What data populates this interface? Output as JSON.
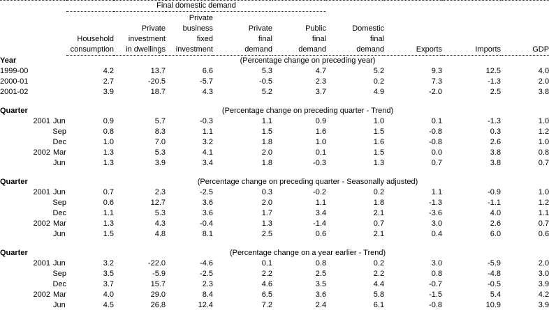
{
  "header": {
    "spanner": "Final domestic demand",
    "columns": [
      {
        "name": "household-consumption",
        "lines": [
          "Household",
          "consumption"
        ]
      },
      {
        "name": "private-investment-in-dwellings",
        "lines": [
          "Private",
          "investment",
          "in dwellings"
        ]
      },
      {
        "name": "private-business-fixed-investment",
        "lines": [
          "Private",
          "business",
          "fixed",
          "investment"
        ]
      },
      {
        "name": "private-final-demand",
        "lines": [
          "Private",
          "final",
          "demand"
        ]
      },
      {
        "name": "public-final-demand",
        "lines": [
          "Public",
          "final",
          "demand"
        ]
      },
      {
        "name": "domestic-final-demand",
        "lines": [
          "Domestic",
          "final",
          "demand"
        ]
      },
      {
        "name": "exports",
        "lines": [
          "Exports"
        ]
      },
      {
        "name": "imports",
        "lines": [
          "Imports"
        ]
      },
      {
        "name": "gdp",
        "lines": [
          "GDP"
        ]
      }
    ]
  },
  "sections": [
    {
      "row_header": "Year",
      "caption": "(Percentage change on preceding year)",
      "rows": [
        {
          "year": "1999-00",
          "month": "",
          "values": [
            "4.2",
            "13.7",
            "6.6",
            "5.3",
            "4.7",
            "5.2",
            "9.3",
            "12.5",
            "4.0"
          ]
        },
        {
          "year": "2000-01",
          "month": "",
          "values": [
            "2.7",
            "-20.5",
            "-5.7",
            "-0.5",
            "2.3",
            "0.2",
            "7.3",
            "-1.3",
            "2.0"
          ]
        },
        {
          "year": "2001-02",
          "month": "",
          "values": [
            "3.9",
            "18.7",
            "4.3",
            "5.2",
            "3.7",
            "4.9",
            "-2.0",
            "2.5",
            "3.8"
          ]
        }
      ]
    },
    {
      "row_header": "Quarter",
      "caption": "(Percentage change on preceding quarter - Trend)",
      "rows": [
        {
          "year": "2001",
          "month": "Jun",
          "values": [
            "0.9",
            "5.7",
            "-0.3",
            "1.1",
            "0.9",
            "1.0",
            "0.1",
            "-1.3",
            "1.0"
          ]
        },
        {
          "year": "",
          "month": "Sep",
          "values": [
            "0.8",
            "8.3",
            "1.1",
            "1.5",
            "1.6",
            "1.5",
            "-0.8",
            "0.3",
            "1.2"
          ]
        },
        {
          "year": "",
          "month": "Dec",
          "values": [
            "1.0",
            "7.0",
            "3.2",
            "1.8",
            "1.0",
            "1.6",
            "-0.8",
            "2.6",
            "1.0"
          ]
        },
        {
          "year": "2002",
          "month": "Mar",
          "values": [
            "1.3",
            "5.3",
            "4.1",
            "2.0",
            "0.1",
            "1.5",
            "0.0",
            "3.8",
            "0.8"
          ]
        },
        {
          "year": "",
          "month": "Jun",
          "values": [
            "1.3",
            "3.9",
            "3.4",
            "1.8",
            "-0.3",
            "1.3",
            "0.7",
            "3.8",
            "0.7"
          ]
        }
      ]
    },
    {
      "row_header": "Quarter",
      "caption": "(Percentage change on preceding quarter - Seasonally adjusted)",
      "rows": [
        {
          "year": "2001",
          "month": "Jun",
          "values": [
            "0.7",
            "2.3",
            "-2.5",
            "0.3",
            "-0.2",
            "0.2",
            "1.1",
            "-0.9",
            "1.0"
          ]
        },
        {
          "year": "",
          "month": "Sep",
          "values": [
            "0.6",
            "12.7",
            "3.6",
            "2.0",
            "1.1",
            "1.8",
            "-1.3",
            "-1.1",
            "1.2"
          ]
        },
        {
          "year": "",
          "month": "Dec",
          "values": [
            "1.1",
            "5.3",
            "3.6",
            "1.7",
            "3.4",
            "2.1",
            "-3.6",
            "4.0",
            "1.1"
          ]
        },
        {
          "year": "2002",
          "month": "Mar",
          "values": [
            "1.3",
            "4.3",
            "-0.4",
            "1.3",
            "-1.4",
            "0.7",
            "3.0",
            "2.6",
            "0.7"
          ]
        },
        {
          "year": "",
          "month": "Jun",
          "values": [
            "1.5",
            "4.8",
            "8.1",
            "2.5",
            "0.6",
            "2.1",
            "0.4",
            "6.0",
            "0.6"
          ]
        }
      ]
    },
    {
      "row_header": "Quarter",
      "caption": "(Percentage change on a year earlier - Trend)",
      "rows": [
        {
          "year": "2001",
          "month": "Jun",
          "values": [
            "3.2",
            "-22.0",
            "-4.6",
            "0.1",
            "0.8",
            "0.2",
            "3.0",
            "-5.9",
            "2.0"
          ]
        },
        {
          "year": "",
          "month": "Sep",
          "values": [
            "3.5",
            "-5.9",
            "-2.5",
            "2.2",
            "2.5",
            "2.2",
            "0.8",
            "-4.8",
            "3.0"
          ]
        },
        {
          "year": "",
          "month": "Dec",
          "values": [
            "3.7",
            "15.7",
            "2.3",
            "4.6",
            "3.5",
            "4.4",
            "-0.7",
            "-0.5",
            "3.9"
          ]
        },
        {
          "year": "2002",
          "month": "Mar",
          "values": [
            "4.0",
            "29.0",
            "8.4",
            "6.5",
            "3.6",
            "5.8",
            "-1.5",
            "5.4",
            "4.2"
          ]
        },
        {
          "year": "",
          "month": "Jun",
          "values": [
            "4.5",
            "26.8",
            "12.4",
            "7.2",
            "2.4",
            "6.1",
            "-0.8",
            "10.9",
            "3.9"
          ]
        }
      ]
    }
  ],
  "colors": {
    "background": "#ffffff",
    "text": "#000000",
    "rule": "#2a2a2a"
  }
}
